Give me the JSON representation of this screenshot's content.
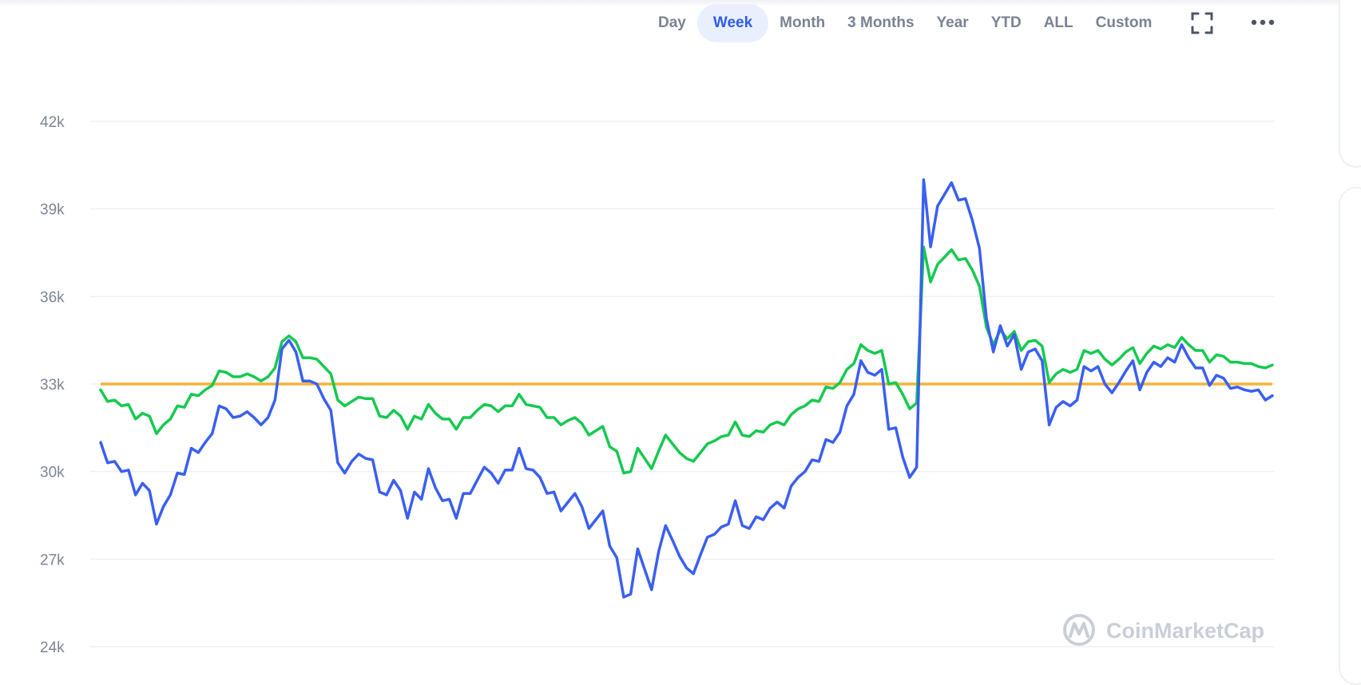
{
  "toolbar": {
    "tabs": [
      {
        "label": "Day",
        "active": false
      },
      {
        "label": "Week",
        "active": true
      },
      {
        "label": "Month",
        "active": false
      },
      {
        "label": "3 Months",
        "active": false
      },
      {
        "label": "Year",
        "active": false
      },
      {
        "label": "YTD",
        "active": false
      },
      {
        "label": "ALL",
        "active": false
      },
      {
        "label": "Custom",
        "active": false
      }
    ],
    "fullscreen_icon": "fullscreen-icon",
    "more_icon": "more-icon"
  },
  "watermark": {
    "text": "CoinMarketCap",
    "icon": "coinmarketcap-logo-icon"
  },
  "colors": {
    "price_line": "#3a5ff0",
    "average_line": "#16c950",
    "baseline": "#f4b43a",
    "active_tab": "#2f5bea",
    "grid": "#eef0f3"
  },
  "chart_data": {
    "type": "line",
    "title": "",
    "xlabel": "",
    "ylabel": "",
    "ylim": [
      24000,
      42000
    ],
    "yticks": [
      {
        "value": 42000,
        "label": "42k"
      },
      {
        "value": 39000,
        "label": "39k"
      },
      {
        "value": 36000,
        "label": "36k"
      },
      {
        "value": 33000,
        "label": "33k"
      },
      {
        "value": 30000,
        "label": "30k"
      },
      {
        "value": 27000,
        "label": "27k"
      },
      {
        "value": 24000,
        "label": "24k"
      }
    ],
    "grid": true,
    "legend": "none",
    "baseline": 33000,
    "series": [
      {
        "color": "#3a5ff0",
        "values": [
          31000,
          30300,
          30350,
          30000,
          30050,
          29200,
          29600,
          29350,
          28200,
          28800,
          29200,
          29950,
          29900,
          30800,
          30650,
          31000,
          31300,
          32250,
          32150,
          31850,
          31900,
          32050,
          31850,
          31600,
          31850,
          32450,
          34200,
          34500,
          34100,
          33100,
          33100,
          33000,
          32500,
          32100,
          30300,
          29950,
          30350,
          30600,
          30450,
          30400,
          29300,
          29200,
          29700,
          29350,
          28400,
          29300,
          29050,
          30100,
          29450,
          29000,
          29050,
          28400,
          29250,
          29250,
          29700,
          30150,
          29950,
          29600,
          30050,
          30050,
          30800,
          30100,
          30050,
          29800,
          29250,
          29300,
          28650,
          28950,
          29250,
          28800,
          28050,
          28350,
          28650,
          27450,
          27050,
          25700,
          25800,
          27350,
          26650,
          25950,
          27250,
          28150,
          27650,
          27100,
          26700,
          26500,
          27150,
          27750,
          27850,
          28100,
          28200,
          29000,
          28150,
          28050,
          28450,
          28350,
          28750,
          28950,
          28750,
          29500,
          29800,
          30000,
          30400,
          30350,
          31100,
          31000,
          31350,
          32250,
          32650,
          33800,
          33400,
          33300,
          33500,
          31450,
          31500,
          30500,
          29800,
          30150,
          40000,
          37700,
          39100,
          39500,
          39900,
          39300,
          39350,
          38600,
          37650,
          35250,
          34100,
          35000,
          34300,
          34700,
          33500,
          34100,
          34200,
          33800,
          31600,
          32200,
          32400,
          32250,
          32450,
          33600,
          33450,
          33600,
          33000,
          32700,
          33050,
          33450,
          33800,
          32800,
          33400,
          33750,
          33600,
          33900,
          33750,
          34350,
          33900,
          33550,
          33550,
          32950,
          33300,
          33200,
          32850,
          32900,
          32800,
          32750,
          32800,
          32450,
          32600
        ]
      },
      {
        "color": "#16c950",
        "values": [
          32800,
          32400,
          32450,
          32250,
          32300,
          31800,
          32000,
          31900,
          31300,
          31600,
          31800,
          32250,
          32200,
          32650,
          32600,
          32800,
          32950,
          33450,
          33400,
          33250,
          33250,
          33350,
          33250,
          33100,
          33250,
          33550,
          34450,
          34650,
          34450,
          33900,
          33900,
          33850,
          33600,
          33350,
          32450,
          32250,
          32400,
          32550,
          32500,
          32500,
          31900,
          31850,
          32100,
          31900,
          31450,
          31900,
          31800,
          32300,
          32000,
          31800,
          31800,
          31450,
          31850,
          31850,
          32100,
          32300,
          32250,
          32050,
          32250,
          32250,
          32650,
          32300,
          32250,
          32200,
          31850,
          31850,
          31600,
          31750,
          31850,
          31650,
          31250,
          31400,
          31550,
          30850,
          30700,
          29950,
          30000,
          30800,
          30450,
          30100,
          30700,
          31250,
          30950,
          30650,
          30450,
          30350,
          30650,
          30950,
          31050,
          31200,
          31250,
          31700,
          31250,
          31200,
          31400,
          31350,
          31600,
          31700,
          31600,
          31950,
          32150,
          32250,
          32450,
          32400,
          32900,
          32850,
          33050,
          33500,
          33700,
          34350,
          34150,
          34050,
          34150,
          33000,
          33050,
          32650,
          32150,
          32350,
          37700,
          36500,
          37100,
          37350,
          37600,
          37250,
          37300,
          36900,
          36350,
          34950,
          34350,
          34850,
          34550,
          34800,
          34150,
          34450,
          34500,
          34300,
          33050,
          33350,
          33500,
          33400,
          33500,
          34150,
          34050,
          34150,
          33850,
          33650,
          33850,
          34100,
          34250,
          33700,
          34050,
          34300,
          34200,
          34350,
          34250,
          34600,
          34350,
          34150,
          34150,
          33750,
          34000,
          33950,
          33750,
          33750,
          33700,
          33700,
          33600,
          33550,
          33650
        ]
      }
    ]
  }
}
